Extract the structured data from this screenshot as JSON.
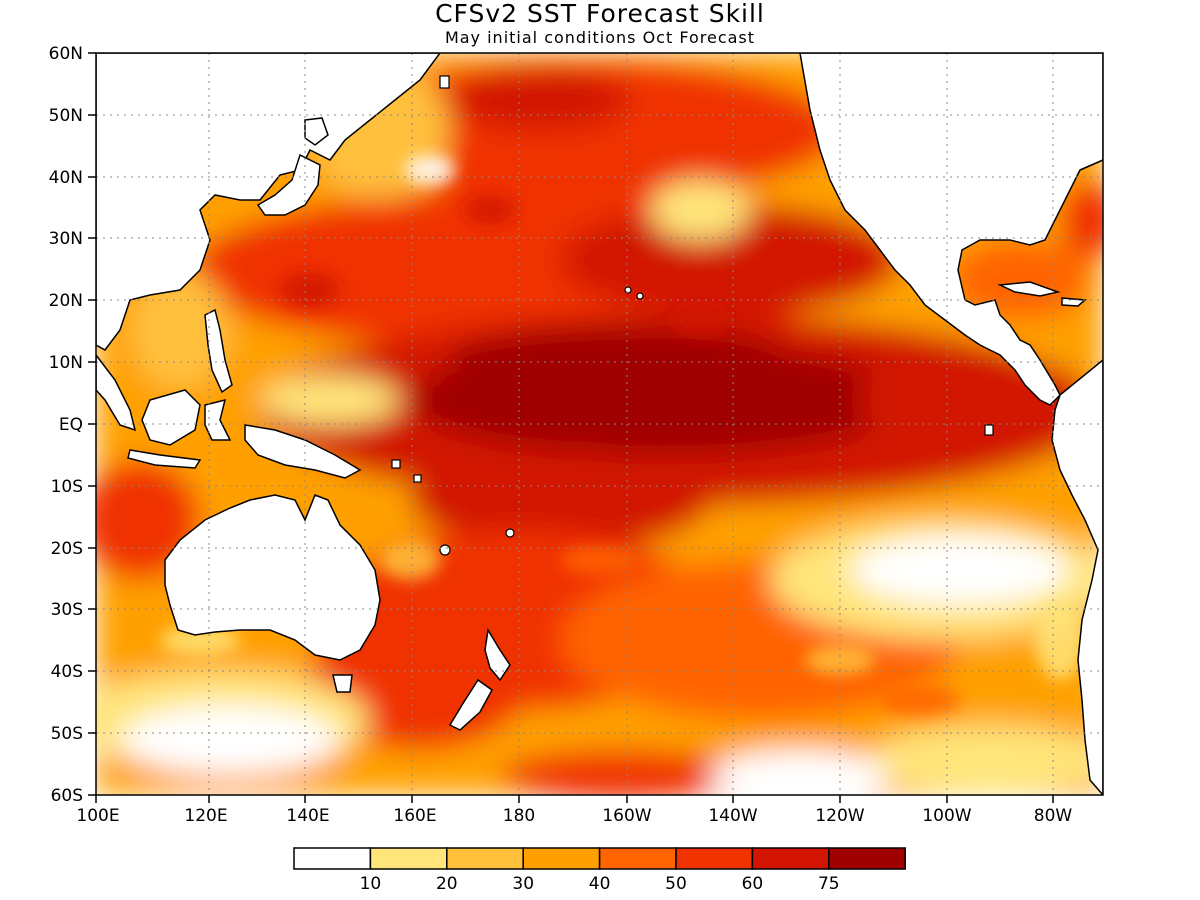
{
  "title": "CFSv2 SST Forecast Skill",
  "subtitle": "May initial conditions  Oct Forecast",
  "map": {
    "projection": "latitude-longitude",
    "region": "Pacific Ocean",
    "lon_range": [
      "100E",
      "70W"
    ],
    "lat_range": [
      "60S",
      "60N"
    ],
    "x_tick_labels": [
      "100E",
      "120E",
      "140E",
      "160E",
      "180",
      "160W",
      "140W",
      "120W",
      "100W",
      "80W"
    ],
    "y_tick_labels": [
      "60N",
      "50N",
      "40N",
      "30N",
      "20N",
      "10N",
      "EQ",
      "10S",
      "20S",
      "30S",
      "40S",
      "50S",
      "60S"
    ],
    "gridlines": "dotted",
    "land_color": "#ffffff",
    "coastline_color": "#000000"
  },
  "colorbar": {
    "labels": [
      "10",
      "20",
      "30",
      "40",
      "50",
      "60",
      "75"
    ],
    "colors": [
      "#ffffff",
      "#ffe57a",
      "#ffc03c",
      "#ffa000",
      "#ff6400",
      "#f03200",
      "#d21400",
      "#a00000"
    ]
  }
}
